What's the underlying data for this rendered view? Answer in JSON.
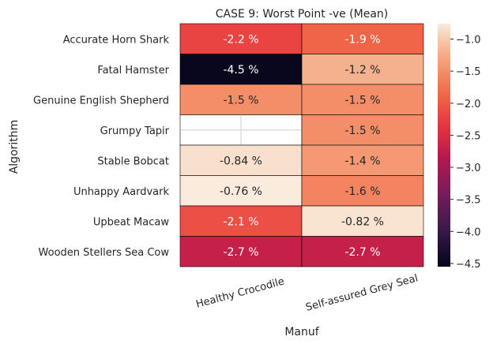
{
  "chart_data": {
    "type": "heatmap",
    "title": "CASE 9: Worst Point -ve (Mean)",
    "xlabel": "Manuf",
    "ylabel": "Algorithm",
    "columns": [
      "Healthy Crocodile",
      "Self-assured Grey Seal"
    ],
    "rows": [
      "Accurate Horn Shark",
      "Fatal Hamster",
      "Genuine English Shepherd",
      "Grumpy Tapir",
      "Stable Bobcat",
      "Unhappy Aardvark",
      "Upbeat Macaw",
      "Wooden Stellers Sea Cow"
    ],
    "values": [
      [
        -2.2,
        -1.9
      ],
      [
        -4.5,
        -1.2
      ],
      [
        -1.5,
        -1.5
      ],
      [
        null,
        -1.5
      ],
      [
        -0.84,
        -1.4
      ],
      [
        -0.76,
        -1.6
      ],
      [
        -2.1,
        -0.82
      ],
      [
        -2.7,
        -2.7
      ]
    ],
    "cell_labels": [
      [
        "-2.2 %",
        "-1.9 %"
      ],
      [
        "-4.5 %",
        "-1.2 %"
      ],
      [
        "-1.5 %",
        "-1.5 %"
      ],
      [
        "",
        "-1.5 %"
      ],
      [
        "-0.84 %",
        "-1.4 %"
      ],
      [
        "-0.76 %",
        "-1.6 %"
      ],
      [
        "-2.1 %",
        "-0.82 %"
      ],
      [
        "-2.7 %",
        "-2.7 %"
      ]
    ],
    "colorbar": {
      "range": [
        -4.55,
        -0.76
      ],
      "ticks": [
        -1.0,
        -1.5,
        -2.0,
        -2.5,
        -3.0,
        -3.5,
        -4.0,
        -4.5
      ],
      "tick_labels": [
        "−1.0",
        "−1.5",
        "−2.0",
        "−2.5",
        "−3.0",
        "−3.5",
        "−4.0",
        "−4.5"
      ],
      "colormap": "rocket"
    },
    "grid": false,
    "x_tick_rotation": "15deg"
  }
}
